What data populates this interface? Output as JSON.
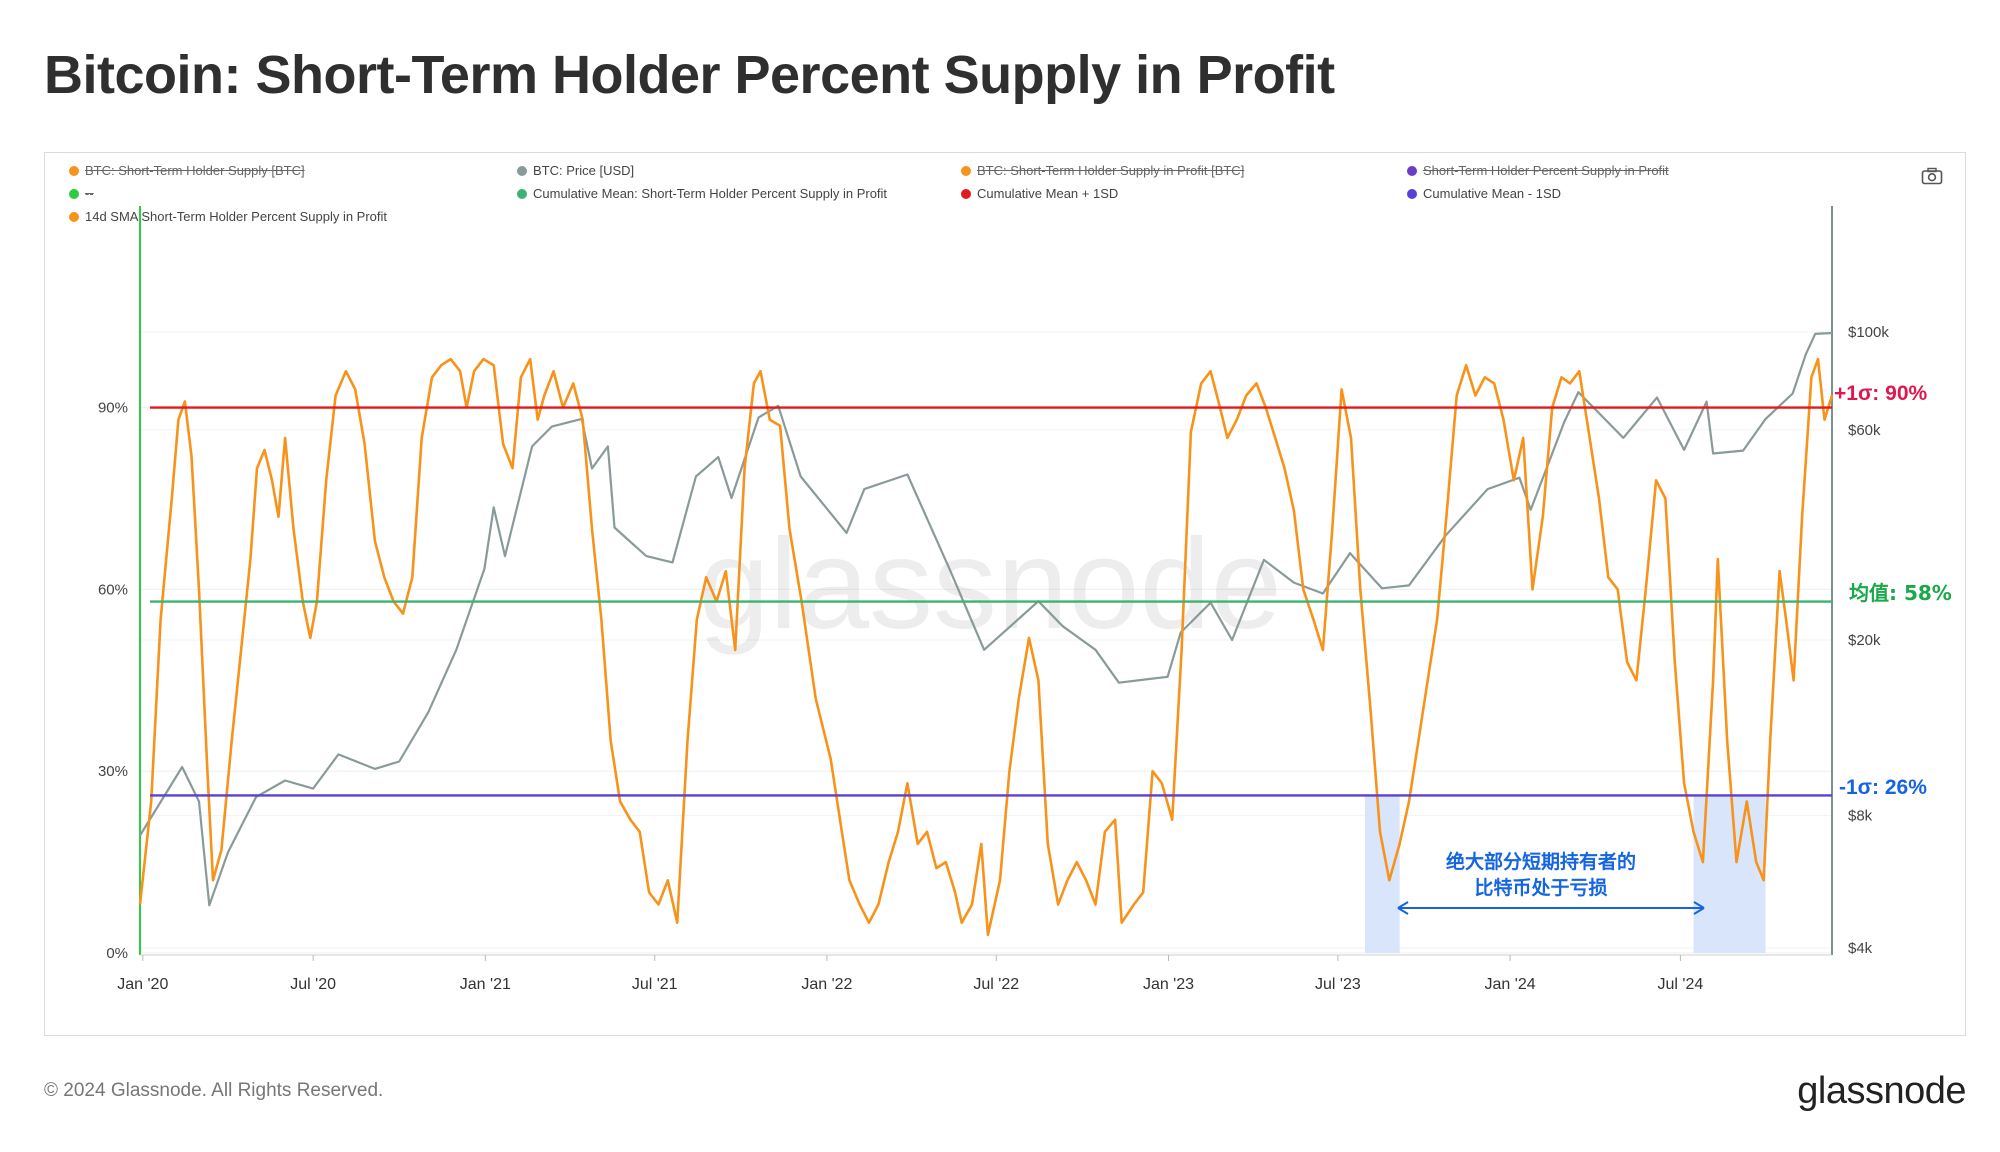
{
  "title": "Bitcoin: Short-Term Holder Percent Supply in Profit",
  "legend": [
    {
      "label": "BTC: Short-Term Holder Supply [BTC]",
      "color": "#f7931a",
      "struck": true
    },
    {
      "label": "BTC: Price [USD]",
      "color": "#8a9a9a",
      "struck": false
    },
    {
      "label": "BTC: Short-Term Holder Supply in Profit [BTC]",
      "color": "#f7931a",
      "struck": true
    },
    {
      "label": "Short-Term Holder Percent Supply in Profit",
      "color": "#6a3dc8",
      "struck": true
    },
    {
      "label": "--",
      "color": "#2ecc40",
      "struck": true
    },
    {
      "label": "Cumulative Mean: Short-Term Holder Percent Supply in Profit",
      "color": "#3cb371",
      "struck": false
    },
    {
      "label": "Cumulative Mean + 1SD",
      "color": "#e31a1c",
      "struck": false
    },
    {
      "label": "Cumulative Mean - 1SD",
      "color": "#5b3fd6",
      "struck": false
    },
    {
      "label": "14d SMA Short-Term Holder Percent Supply in Profit",
      "color": "#f7931a",
      "struck": false
    }
  ],
  "annotations": {
    "upper": "+1σ: 90%",
    "mean": "均值: 58%",
    "lower": "-1σ: 26%",
    "loss_note_line1": "绝大部分短期持有者的",
    "loss_note_line2": "比特币处于亏损"
  },
  "watermark": "glassnode",
  "footer": "© 2024 Glassnode. All Rights Reserved.",
  "brand": "glassnode",
  "colors": {
    "sma": "#f7931a",
    "price": "#8a9a9a",
    "upper": "#e31a1c",
    "mean": "#3cb371",
    "lower": "#5b3fd6",
    "shade": "#d6e4fb",
    "green_axis": "#2ecc40"
  },
  "chart_data": {
    "type": "line",
    "x_ticks": [
      "Jan '20",
      "Jul '20",
      "Jan '21",
      "Jul '21",
      "Jan '22",
      "Jul '22",
      "Jan '23",
      "Jul '23",
      "Jan '24",
      "Jul '24"
    ],
    "x_range": [
      "2019-12-29",
      "2024-12-10"
    ],
    "y_left": {
      "ticks": [
        "0%",
        "30%",
        "60%",
        "90%"
      ],
      "range": [
        0,
        100
      ],
      "unit": "%"
    },
    "y_right": {
      "ticks": [
        "$4k",
        "$8k",
        "$20k",
        "$60k",
        "$100k"
      ],
      "tick_values": [
        4000,
        8000,
        20000,
        60000,
        100000
      ],
      "scale": "log"
    },
    "reference_lines": {
      "upper": 90,
      "mean": 58,
      "lower": 26
    },
    "shaded_periods": [
      [
        "2023-07-30",
        "2023-09-05"
      ],
      [
        "2024-07-15",
        "2024-09-30"
      ]
    ],
    "series": [
      {
        "name": "14d SMA Short-Term Holder Percent Supply in Profit",
        "axis": "left",
        "points": [
          [
            "2019-12-29",
            8
          ],
          [
            "2020-01-10",
            25
          ],
          [
            "2020-01-20",
            55
          ],
          [
            "2020-02-01",
            75
          ],
          [
            "2020-02-08",
            88
          ],
          [
            "2020-02-15",
            91
          ],
          [
            "2020-02-22",
            82
          ],
          [
            "2020-03-01",
            60
          ],
          [
            "2020-03-10",
            30
          ],
          [
            "2020-03-16",
            12
          ],
          [
            "2020-03-25",
            17
          ],
          [
            "2020-04-05",
            35
          ],
          [
            "2020-04-15",
            50
          ],
          [
            "2020-04-25",
            65
          ],
          [
            "2020-05-02",
            80
          ],
          [
            "2020-05-10",
            83
          ],
          [
            "2020-05-18",
            78
          ],
          [
            "2020-05-25",
            72
          ],
          [
            "2020-06-01",
            85
          ],
          [
            "2020-06-10",
            70
          ],
          [
            "2020-06-20",
            58
          ],
          [
            "2020-06-28",
            52
          ],
          [
            "2020-07-05",
            58
          ],
          [
            "2020-07-15",
            78
          ],
          [
            "2020-07-25",
            92
          ],
          [
            "2020-08-05",
            96
          ],
          [
            "2020-08-15",
            93
          ],
          [
            "2020-08-25",
            84
          ],
          [
            "2020-09-05",
            68
          ],
          [
            "2020-09-15",
            62
          ],
          [
            "2020-09-25",
            58
          ],
          [
            "2020-10-05",
            56
          ],
          [
            "2020-10-15",
            62
          ],
          [
            "2020-10-25",
            85
          ],
          [
            "2020-11-05",
            95
          ],
          [
            "2020-11-15",
            97
          ],
          [
            "2020-11-25",
            98
          ],
          [
            "2020-12-05",
            96
          ],
          [
            "2020-12-12",
            90
          ],
          [
            "2020-12-20",
            96
          ],
          [
            "2020-12-30",
            98
          ],
          [
            "2021-01-10",
            97
          ],
          [
            "2021-01-20",
            84
          ],
          [
            "2021-01-30",
            80
          ],
          [
            "2021-02-08",
            95
          ],
          [
            "2021-02-18",
            98
          ],
          [
            "2021-02-26",
            88
          ],
          [
            "2021-03-05",
            92
          ],
          [
            "2021-03-15",
            96
          ],
          [
            "2021-03-25",
            90
          ],
          [
            "2021-04-05",
            94
          ],
          [
            "2021-04-15",
            88
          ],
          [
            "2021-04-25",
            70
          ],
          [
            "2021-05-05",
            55
          ],
          [
            "2021-05-15",
            35
          ],
          [
            "2021-05-25",
            25
          ],
          [
            "2021-06-05",
            22
          ],
          [
            "2021-06-15",
            20
          ],
          [
            "2021-06-25",
            10
          ],
          [
            "2021-07-05",
            8
          ],
          [
            "2021-07-15",
            12
          ],
          [
            "2021-07-25",
            5
          ],
          [
            "2021-08-05",
            35
          ],
          [
            "2021-08-15",
            55
          ],
          [
            "2021-08-25",
            62
          ],
          [
            "2021-09-05",
            58
          ],
          [
            "2021-09-15",
            63
          ],
          [
            "2021-09-25",
            50
          ],
          [
            "2021-10-05",
            80
          ],
          [
            "2021-10-15",
            94
          ],
          [
            "2021-10-22",
            96
          ],
          [
            "2021-11-01",
            88
          ],
          [
            "2021-11-12",
            87
          ],
          [
            "2021-11-22",
            70
          ],
          [
            "2021-12-05",
            58
          ],
          [
            "2021-12-20",
            42
          ],
          [
            "2022-01-05",
            32
          ],
          [
            "2022-01-15",
            22
          ],
          [
            "2022-01-25",
            12
          ],
          [
            "2022-02-05",
            8
          ],
          [
            "2022-02-15",
            5
          ],
          [
            "2022-02-25",
            8
          ],
          [
            "2022-03-08",
            15
          ],
          [
            "2022-03-18",
            20
          ],
          [
            "2022-03-28",
            28
          ],
          [
            "2022-04-08",
            18
          ],
          [
            "2022-04-18",
            20
          ],
          [
            "2022-04-28",
            14
          ],
          [
            "2022-05-08",
            15
          ],
          [
            "2022-05-18",
            10
          ],
          [
            "2022-05-25",
            5
          ],
          [
            "2022-06-05",
            8
          ],
          [
            "2022-06-15",
            18
          ],
          [
            "2022-06-22",
            3
          ],
          [
            "2022-07-05",
            12
          ],
          [
            "2022-07-15",
            30
          ],
          [
            "2022-07-25",
            42
          ],
          [
            "2022-08-05",
            52
          ],
          [
            "2022-08-15",
            45
          ],
          [
            "2022-08-25",
            18
          ],
          [
            "2022-09-05",
            8
          ],
          [
            "2022-09-15",
            12
          ],
          [
            "2022-09-25",
            15
          ],
          [
            "2022-10-05",
            12
          ],
          [
            "2022-10-15",
            8
          ],
          [
            "2022-10-25",
            20
          ],
          [
            "2022-11-05",
            22
          ],
          [
            "2022-11-12",
            5
          ],
          [
            "2022-11-25",
            8
          ],
          [
            "2022-12-05",
            10
          ],
          [
            "2022-12-15",
            30
          ],
          [
            "2022-12-25",
            28
          ],
          [
            "2023-01-05",
            22
          ],
          [
            "2023-01-15",
            50
          ],
          [
            "2023-01-25",
            86
          ],
          [
            "2023-02-05",
            94
          ],
          [
            "2023-02-15",
            96
          ],
          [
            "2023-02-25",
            90
          ],
          [
            "2023-03-05",
            85
          ],
          [
            "2023-03-15",
            88
          ],
          [
            "2023-03-25",
            92
          ],
          [
            "2023-04-05",
            94
          ],
          [
            "2023-04-15",
            90
          ],
          [
            "2023-04-25",
            85
          ],
          [
            "2023-05-05",
            80
          ],
          [
            "2023-05-15",
            73
          ],
          [
            "2023-05-25",
            60
          ],
          [
            "2023-06-05",
            55
          ],
          [
            "2023-06-15",
            50
          ],
          [
            "2023-06-25",
            70
          ],
          [
            "2023-07-05",
            93
          ],
          [
            "2023-07-15",
            85
          ],
          [
            "2023-07-25",
            60
          ],
          [
            "2023-08-05",
            40
          ],
          [
            "2023-08-15",
            20
          ],
          [
            "2023-08-25",
            12
          ],
          [
            "2023-09-05",
            18
          ],
          [
            "2023-09-15",
            25
          ],
          [
            "2023-09-25",
            35
          ],
          [
            "2023-10-05",
            45
          ],
          [
            "2023-10-15",
            55
          ],
          [
            "2023-10-25",
            72
          ],
          [
            "2023-11-05",
            92
          ],
          [
            "2023-11-15",
            97
          ],
          [
            "2023-11-25",
            92
          ],
          [
            "2023-12-05",
            95
          ],
          [
            "2023-12-15",
            94
          ],
          [
            "2023-12-25",
            88
          ],
          [
            "2024-01-05",
            78
          ],
          [
            "2024-01-15",
            85
          ],
          [
            "2024-01-25",
            60
          ],
          [
            "2024-02-05",
            72
          ],
          [
            "2024-02-15",
            90
          ],
          [
            "2024-02-25",
            95
          ],
          [
            "2024-03-05",
            94
          ],
          [
            "2024-03-15",
            96
          ],
          [
            "2024-03-25",
            86
          ],
          [
            "2024-04-05",
            75
          ],
          [
            "2024-04-15",
            62
          ],
          [
            "2024-04-25",
            60
          ],
          [
            "2024-05-05",
            48
          ],
          [
            "2024-05-15",
            45
          ],
          [
            "2024-05-25",
            60
          ],
          [
            "2024-06-05",
            78
          ],
          [
            "2024-06-15",
            75
          ],
          [
            "2024-06-25",
            48
          ],
          [
            "2024-07-05",
            28
          ],
          [
            "2024-07-15",
            20
          ],
          [
            "2024-07-25",
            15
          ],
          [
            "2024-08-05",
            45
          ],
          [
            "2024-08-10",
            65
          ],
          [
            "2024-08-20",
            35
          ],
          [
            "2024-08-30",
            15
          ],
          [
            "2024-09-10",
            25
          ],
          [
            "2024-09-20",
            15
          ],
          [
            "2024-09-28",
            12
          ],
          [
            "2024-10-05",
            35
          ],
          [
            "2024-10-15",
            63
          ],
          [
            "2024-10-22",
            55
          ],
          [
            "2024-10-30",
            45
          ],
          [
            "2024-11-08",
            72
          ],
          [
            "2024-11-18",
            95
          ],
          [
            "2024-11-25",
            98
          ],
          [
            "2024-12-02",
            88
          ],
          [
            "2024-12-10",
            92
          ]
        ]
      },
      {
        "name": "BTC: Price [USD]",
        "axis": "right",
        "points": [
          [
            "2019-12-29",
            7200
          ],
          [
            "2020-02-12",
            10300
          ],
          [
            "2020-03-01",
            8600
          ],
          [
            "2020-03-12",
            5000
          ],
          [
            "2020-04-01",
            6600
          ],
          [
            "2020-05-01",
            8800
          ],
          [
            "2020-06-01",
            9600
          ],
          [
            "2020-07-01",
            9200
          ],
          [
            "2020-07-28",
            11000
          ],
          [
            "2020-09-05",
            10200
          ],
          [
            "2020-10-01",
            10600
          ],
          [
            "2020-11-01",
            13700
          ],
          [
            "2020-12-01",
            19000
          ],
          [
            "2020-12-31",
            29000
          ],
          [
            "2021-01-10",
            40000
          ],
          [
            "2021-01-22",
            31000
          ],
          [
            "2021-02-20",
            55000
          ],
          [
            "2021-03-13",
            61000
          ],
          [
            "2021-04-14",
            63500
          ],
          [
            "2021-04-25",
            49000
          ],
          [
            "2021-05-12",
            55000
          ],
          [
            "2021-05-19",
            36000
          ],
          [
            "2021-06-22",
            31000
          ],
          [
            "2021-07-20",
            30000
          ],
          [
            "2021-08-14",
            47000
          ],
          [
            "2021-09-07",
            52000
          ],
          [
            "2021-09-21",
            42000
          ],
          [
            "2021-10-20",
            64000
          ],
          [
            "2021-11-10",
            68000
          ],
          [
            "2021-12-04",
            47000
          ],
          [
            "2022-01-22",
            35000
          ],
          [
            "2022-02-10",
            44000
          ],
          [
            "2022-03-28",
            47500
          ],
          [
            "2022-05-12",
            29000
          ],
          [
            "2022-06-18",
            19000
          ],
          [
            "2022-08-15",
            24500
          ],
          [
            "2022-09-10",
            21500
          ],
          [
            "2022-10-15",
            19000
          ],
          [
            "2022-11-09",
            16000
          ],
          [
            "2022-12-31",
            16500
          ],
          [
            "2023-01-14",
            20800
          ],
          [
            "2023-02-15",
            24300
          ],
          [
            "2023-03-10",
            20000
          ],
          [
            "2023-04-13",
            30400
          ],
          [
            "2023-05-15",
            27000
          ],
          [
            "2023-06-15",
            25500
          ],
          [
            "2023-07-14",
            31500
          ],
          [
            "2023-08-17",
            26200
          ],
          [
            "2023-09-15",
            26600
          ],
          [
            "2023-10-24",
            34500
          ],
          [
            "2023-12-08",
            44000
          ],
          [
            "2024-01-11",
            46700
          ],
          [
            "2024-01-23",
            39500
          ],
          [
            "2024-02-28",
            62500
          ],
          [
            "2024-03-14",
            73000
          ],
          [
            "2024-05-01",
            57500
          ],
          [
            "2024-06-06",
            71000
          ],
          [
            "2024-07-05",
            54000
          ],
          [
            "2024-07-29",
            69500
          ],
          [
            "2024-08-05",
            53000
          ],
          [
            "2024-09-06",
            53800
          ],
          [
            "2024-09-30",
            63500
          ],
          [
            "2024-10-29",
            72500
          ],
          [
            "2024-11-12",
            89000
          ],
          [
            "2024-11-22",
            99000
          ],
          [
            "2024-12-10",
            99500
          ]
        ]
      }
    ]
  }
}
